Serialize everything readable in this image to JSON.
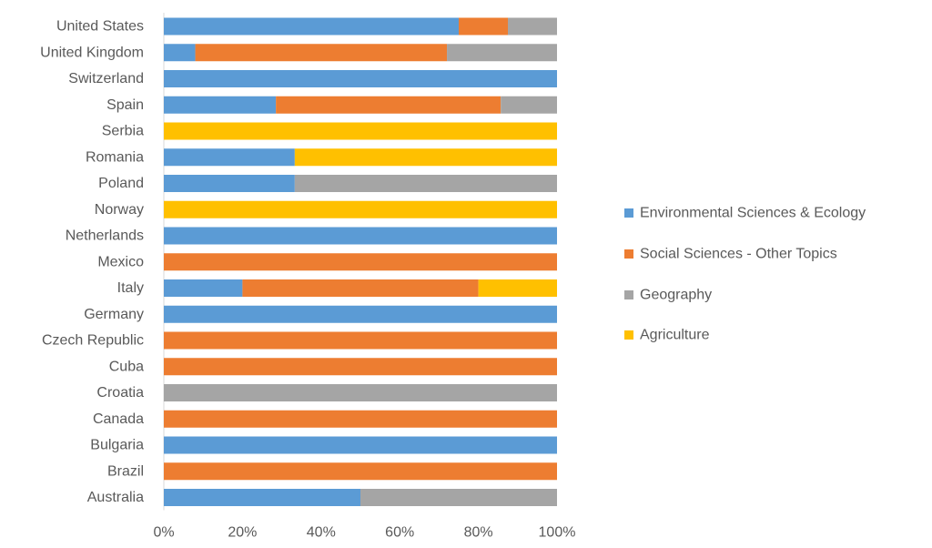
{
  "chart_data": {
    "type": "bar",
    "orientation": "horizontal",
    "stacked": "percent",
    "categories": [
      "United States",
      "United Kingdom",
      "Switzerland",
      "Spain",
      "Serbia",
      "Romania",
      "Poland",
      "Norway",
      "Netherlands",
      "Mexico",
      "Italy",
      "Germany",
      "Czech Republic",
      "Cuba",
      "Croatia",
      "Canada",
      "Bulgaria",
      "Brazil",
      "Australia"
    ],
    "series": [
      {
        "name": "Environmental Sciences & Ecology",
        "color": "#5b9bd5",
        "values": [
          75,
          8,
          100,
          28.5,
          0,
          33.3,
          33.3,
          0,
          100,
          0,
          20,
          100,
          0,
          0,
          0,
          0,
          100,
          0,
          50
        ]
      },
      {
        "name": "Social Sciences - Other Topics",
        "color": "#ed7d31",
        "values": [
          12.5,
          64,
          0,
          57.2,
          0,
          0,
          0,
          0,
          0,
          100,
          60,
          0,
          100,
          100,
          0,
          100,
          0,
          100,
          0
        ]
      },
      {
        "name": "Geography",
        "color": "#a5a5a5",
        "values": [
          12.5,
          28,
          0,
          14.3,
          0,
          0,
          66.7,
          0,
          0,
          0,
          0,
          0,
          0,
          0,
          100,
          0,
          0,
          0,
          50
        ]
      },
      {
        "name": "Agriculture",
        "color": "#ffc000",
        "values": [
          0,
          0,
          0,
          0,
          100,
          66.7,
          0,
          100,
          0,
          0,
          20,
          0,
          0,
          0,
          0,
          0,
          0,
          0,
          0
        ]
      }
    ],
    "x_ticks": [
      "0%",
      "20%",
      "40%",
      "60%",
      "80%",
      "100%"
    ],
    "xlim": [
      0,
      100
    ],
    "legend_position": "right",
    "grid": false,
    "title": "",
    "xlabel": "",
    "ylabel": ""
  }
}
